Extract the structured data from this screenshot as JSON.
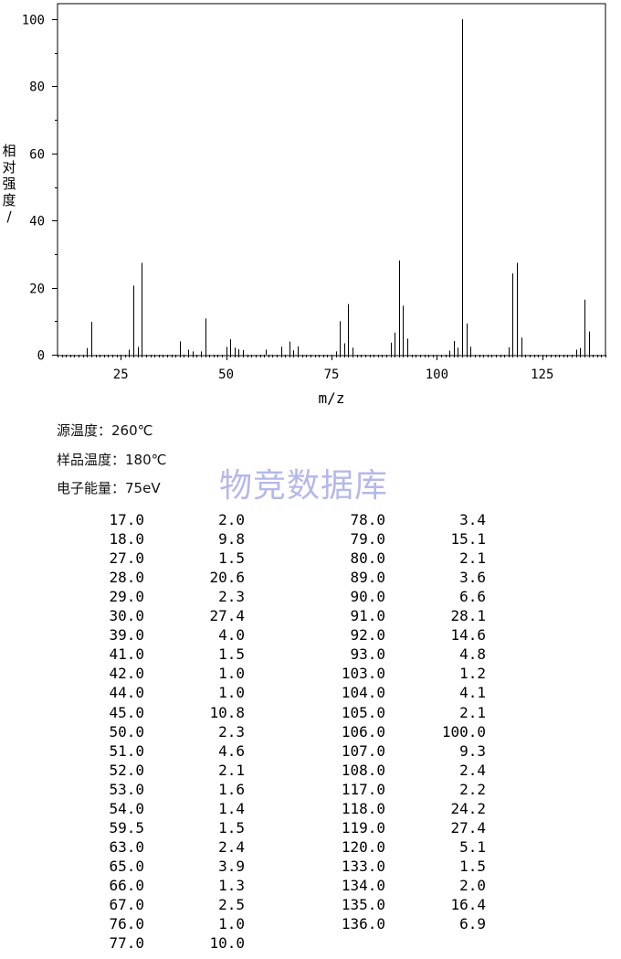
{
  "chart_data": {
    "type": "bar",
    "xlabel": "m/z",
    "ylabel": "相对强度/%",
    "xlim": [
      10,
      140
    ],
    "ylim": [
      0,
      100
    ],
    "x_ticks": [
      25,
      50,
      75,
      100,
      125
    ],
    "y_ticks": [
      0,
      20,
      40,
      60,
      80,
      100
    ],
    "grid": false,
    "peaks": [
      {
        "mz": 17.0,
        "intensity": 2.0
      },
      {
        "mz": 18.0,
        "intensity": 9.8
      },
      {
        "mz": 27.0,
        "intensity": 1.5
      },
      {
        "mz": 28.0,
        "intensity": 20.6
      },
      {
        "mz": 29.0,
        "intensity": 2.3
      },
      {
        "mz": 30.0,
        "intensity": 27.4
      },
      {
        "mz": 39.0,
        "intensity": 4.0
      },
      {
        "mz": 41.0,
        "intensity": 1.5
      },
      {
        "mz": 42.0,
        "intensity": 1.0
      },
      {
        "mz": 44.0,
        "intensity": 1.0
      },
      {
        "mz": 45.0,
        "intensity": 10.8
      },
      {
        "mz": 50.0,
        "intensity": 2.3
      },
      {
        "mz": 51.0,
        "intensity": 4.6
      },
      {
        "mz": 52.0,
        "intensity": 2.1
      },
      {
        "mz": 53.0,
        "intensity": 1.6
      },
      {
        "mz": 54.0,
        "intensity": 1.4
      },
      {
        "mz": 59.5,
        "intensity": 1.5
      },
      {
        "mz": 63.0,
        "intensity": 2.4
      },
      {
        "mz": 65.0,
        "intensity": 3.9
      },
      {
        "mz": 66.0,
        "intensity": 1.3
      },
      {
        "mz": 67.0,
        "intensity": 2.5
      },
      {
        "mz": 76.0,
        "intensity": 1.0
      },
      {
        "mz": 77.0,
        "intensity": 10.0
      },
      {
        "mz": 78.0,
        "intensity": 3.4
      },
      {
        "mz": 79.0,
        "intensity": 15.1
      },
      {
        "mz": 80.0,
        "intensity": 2.1
      },
      {
        "mz": 89.0,
        "intensity": 3.6
      },
      {
        "mz": 90.0,
        "intensity": 6.6
      },
      {
        "mz": 91.0,
        "intensity": 28.1
      },
      {
        "mz": 92.0,
        "intensity": 14.6
      },
      {
        "mz": 93.0,
        "intensity": 4.8
      },
      {
        "mz": 103.0,
        "intensity": 1.2
      },
      {
        "mz": 104.0,
        "intensity": 4.1
      },
      {
        "mz": 105.0,
        "intensity": 2.1
      },
      {
        "mz": 106.0,
        "intensity": 100.0
      },
      {
        "mz": 107.0,
        "intensity": 9.3
      },
      {
        "mz": 108.0,
        "intensity": 2.4
      },
      {
        "mz": 117.0,
        "intensity": 2.2
      },
      {
        "mz": 118.0,
        "intensity": 24.2
      },
      {
        "mz": 119.0,
        "intensity": 27.4
      },
      {
        "mz": 120.0,
        "intensity": 5.1
      },
      {
        "mz": 133.0,
        "intensity": 1.5
      },
      {
        "mz": 134.0,
        "intensity": 2.0
      },
      {
        "mz": 135.0,
        "intensity": 16.4
      },
      {
        "mz": 136.0,
        "intensity": 6.9
      }
    ]
  },
  "conditions": {
    "source_temp": "源温度：260℃",
    "sample_temp": "样品温度：180℃",
    "electron_energy": "电子能量：75eV"
  },
  "watermark": "物竞数据库",
  "table": {
    "columns": [
      [
        [
          "17.0",
          "2.0"
        ],
        [
          "18.0",
          "9.8"
        ],
        [
          "27.0",
          "1.5"
        ],
        [
          "28.0",
          "20.6"
        ],
        [
          "29.0",
          "2.3"
        ],
        [
          "30.0",
          "27.4"
        ],
        [
          "39.0",
          "4.0"
        ],
        [
          "41.0",
          "1.5"
        ],
        [
          "42.0",
          "1.0"
        ],
        [
          "44.0",
          "1.0"
        ],
        [
          "45.0",
          "10.8"
        ],
        [
          "50.0",
          "2.3"
        ],
        [
          "51.0",
          "4.6"
        ],
        [
          "52.0",
          "2.1"
        ],
        [
          "53.0",
          "1.6"
        ],
        [
          "54.0",
          "1.4"
        ],
        [
          "59.5",
          "1.5"
        ],
        [
          "63.0",
          "2.4"
        ],
        [
          "65.0",
          "3.9"
        ],
        [
          "66.0",
          "1.3"
        ],
        [
          "67.0",
          "2.5"
        ],
        [
          "76.0",
          "1.0"
        ],
        [
          "77.0",
          "10.0"
        ]
      ],
      [
        [
          "78.0",
          "3.4"
        ],
        [
          "79.0",
          "15.1"
        ],
        [
          "80.0",
          "2.1"
        ],
        [
          "89.0",
          "3.6"
        ],
        [
          "90.0",
          "6.6"
        ],
        [
          "91.0",
          "28.1"
        ],
        [
          "92.0",
          "14.6"
        ],
        [
          "93.0",
          "4.8"
        ],
        [
          "103.0",
          "1.2"
        ],
        [
          "104.0",
          "4.1"
        ],
        [
          "105.0",
          "2.1"
        ],
        [
          "106.0",
          "100.0"
        ],
        [
          "107.0",
          "9.3"
        ],
        [
          "108.0",
          "2.4"
        ],
        [
          "117.0",
          "2.2"
        ],
        [
          "118.0",
          "24.2"
        ],
        [
          "119.0",
          "27.4"
        ],
        [
          "120.0",
          "5.1"
        ],
        [
          "133.0",
          "1.5"
        ],
        [
          "134.0",
          "2.0"
        ],
        [
          "135.0",
          "16.4"
        ],
        [
          "136.0",
          "6.9"
        ]
      ]
    ]
  }
}
